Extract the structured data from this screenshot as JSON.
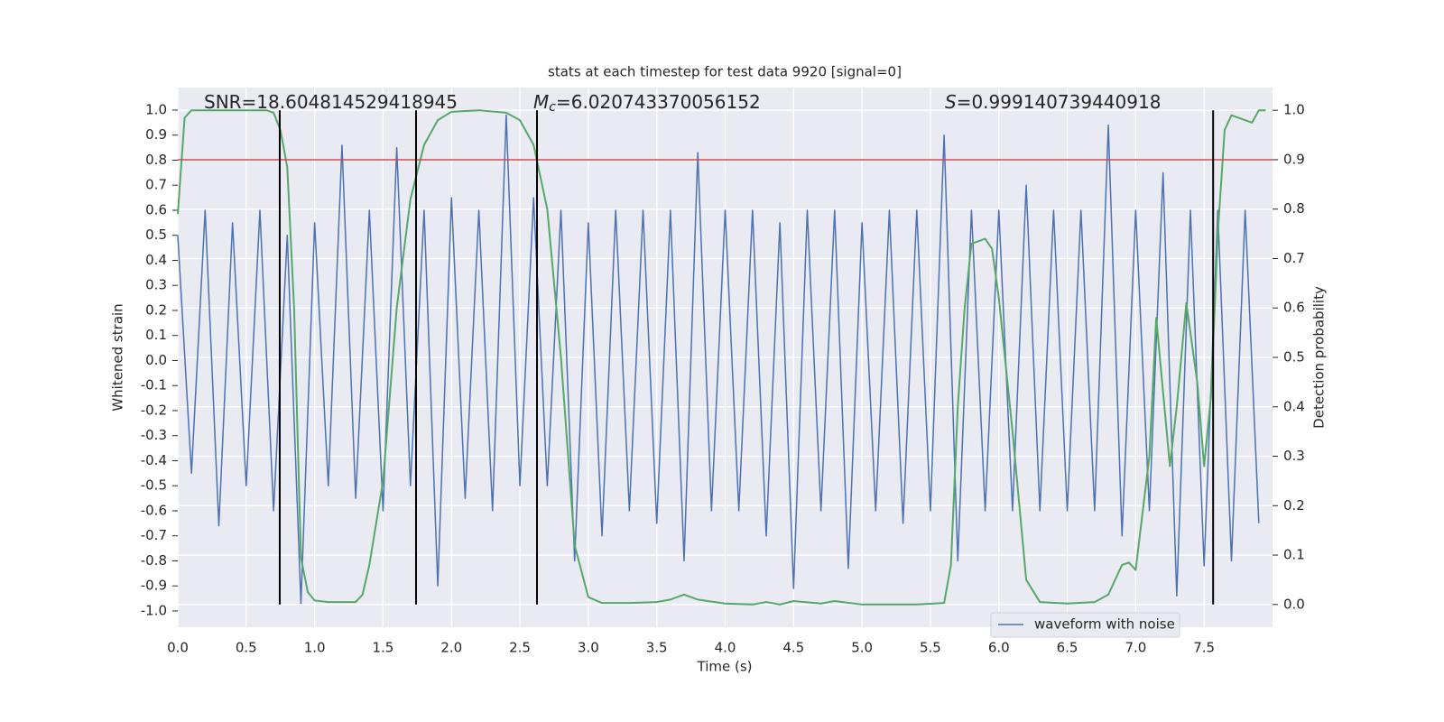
{
  "chart_data": {
    "type": "line",
    "title": "stats at each timestep for test data 9920 [signal=0]",
    "xlabel": "Time (s)",
    "ylabel": "Whitened strain",
    "y2label": "Detection probability",
    "annotations": [
      {
        "text": "SNR=18.604814529418945"
      },
      {
        "symbol": "M",
        "subscript": "c",
        "text": "=6.020743370056152"
      },
      {
        "symbol": "S",
        "text": "=0.999140739440918"
      }
    ],
    "xlim": [
      0,
      8
    ],
    "ylim": [
      -1.065,
      1.09
    ],
    "y2lim": [
      -0.046,
      1.046
    ],
    "xticks": [
      {
        "value": 0,
        "label": "0.0"
      },
      0.5,
      {
        "value": 1,
        "label": "1.0"
      },
      1.5,
      {
        "value": 2,
        "label": "2.0"
      },
      2.5,
      {
        "value": 3,
        "label": "3.0"
      },
      3.5,
      {
        "value": 4,
        "label": "4.0"
      },
      4.5,
      {
        "value": 5,
        "label": "5.0"
      },
      5.5,
      {
        "value": 6,
        "label": "6.0"
      },
      6.5,
      {
        "value": 7,
        "label": "7.0"
      },
      7.5
    ],
    "yticks": [
      {
        "value": -1,
        "label": "-1.0"
      },
      -0.9,
      -0.8,
      -0.7,
      -0.6,
      -0.5,
      -0.4,
      -0.3,
      -0.2,
      -0.1,
      {
        "value": 0,
        "label": "0.0"
      },
      0.1,
      0.2,
      0.3,
      0.4,
      0.5,
      0.6,
      0.7,
      0.8,
      0.9,
      {
        "value": 1,
        "label": "1.0"
      }
    ],
    "y2ticks": [
      {
        "value": 0,
        "label": "0.0"
      },
      0.1,
      0.2,
      0.3,
      0.4,
      0.5,
      0.6,
      0.7,
      0.8,
      0.9,
      {
        "value": 1,
        "label": "1.0"
      }
    ],
    "grid": true,
    "legend": "lower right",
    "hline": {
      "value": 0.9,
      "axis": "y2",
      "color": "#c44e52"
    },
    "vlines": {
      "x": [
        0.745,
        1.741,
        2.625,
        7.566
      ],
      "color": "#000000"
    },
    "series": [
      {
        "name": "waveform with noise",
        "color": "#4c72b0",
        "x": [
          0,
          0.1,
          0.2,
          0.3,
          0.4,
          0.5,
          0.6,
          0.7,
          0.8,
          0.9,
          1,
          1.1,
          1.2,
          1.3,
          1.4,
          1.5,
          1.6,
          1.7,
          1.8,
          1.9,
          2,
          2.1,
          2.2,
          2.3,
          2.4,
          2.5,
          2.6,
          2.7,
          2.8,
          2.9,
          3,
          3.1,
          3.2,
          3.3,
          3.4,
          3.5,
          3.6,
          3.7,
          3.8,
          3.9,
          4,
          4.1,
          4.2,
          4.3,
          4.4,
          4.5,
          4.6,
          4.7,
          4.8,
          4.9,
          5,
          5.1,
          5.2,
          5.3,
          5.4,
          5.5,
          5.6,
          5.7,
          5.8,
          5.9,
          6,
          6.1,
          6.2,
          6.3,
          6.4,
          6.5,
          6.6,
          6.7,
          6.8,
          6.9,
          7,
          7.1,
          7.2,
          7.3,
          7.4,
          7.5,
          7.6,
          7.7,
          7.8,
          7.9
        ],
        "values": [
          0.5,
          -0.45,
          0.6,
          -0.66,
          0.55,
          -0.5,
          0.6,
          -0.6,
          0.5,
          -0.97,
          0.55,
          -0.5,
          0.86,
          -0.55,
          0.6,
          -0.6,
          0.85,
          -0.5,
          0.6,
          -0.9,
          0.65,
          -0.55,
          0.6,
          -0.6,
          0.98,
          -0.5,
          0.65,
          -0.5,
          0.6,
          -0.8,
          0.55,
          -0.7,
          0.6,
          -0.6,
          0.6,
          -0.65,
          0.6,
          -0.8,
          0.83,
          -0.6,
          0.6,
          -0.6,
          0.6,
          -0.7,
          0.55,
          -0.91,
          0.6,
          -0.6,
          0.6,
          -0.83,
          0.55,
          -0.6,
          0.6,
          -0.65,
          0.6,
          -0.6,
          0.9,
          -0.8,
          0.6,
          -0.6,
          0.6,
          -0.6,
          0.7,
          -0.6,
          0.6,
          -0.6,
          0.6,
          -0.6,
          0.94,
          -0.7,
          0.6,
          -0.6,
          0.75,
          -0.94,
          0.6,
          -0.82,
          0.6,
          -0.8,
          0.6,
          -0.65
        ]
      },
      {
        "color": "#55a868",
        "axis": "y2",
        "x": [
          0,
          0.05,
          0.1,
          0.2,
          0.4,
          0.65,
          0.7,
          0.75,
          0.8,
          0.85,
          0.9,
          0.95,
          1.0,
          1.1,
          1.2,
          1.3,
          1.35,
          1.4,
          1.5,
          1.6,
          1.7,
          1.8,
          1.9,
          2.0,
          2.2,
          2.4,
          2.5,
          2.6,
          2.7,
          2.8,
          2.9,
          3.0,
          3.1,
          3.3,
          3.5,
          3.6,
          3.7,
          3.8,
          4.0,
          4.2,
          4.3,
          4.4,
          4.5,
          4.7,
          4.8,
          5.0,
          5.2,
          5.4,
          5.6,
          5.65,
          5.7,
          5.75,
          5.8,
          5.9,
          5.95,
          6.0,
          6.1,
          6.2,
          6.3,
          6.5,
          6.7,
          6.8,
          6.9,
          6.95,
          7.0,
          7.1,
          7.15,
          7.25,
          7.3,
          7.37,
          7.45,
          7.5,
          7.55,
          7.6,
          7.65,
          7.7,
          7.85,
          7.9,
          7.95
        ],
        "values": [
          0.79,
          0.985,
          1.0,
          1.0,
          1.0,
          1.0,
          0.995,
          0.96,
          0.885,
          0.6,
          0.095,
          0.025,
          0.008,
          0.005,
          0.005,
          0.005,
          0.02,
          0.08,
          0.25,
          0.6,
          0.82,
          0.93,
          0.98,
          0.997,
          1.0,
          0.995,
          0.98,
          0.93,
          0.8,
          0.5,
          0.12,
          0.015,
          0.003,
          0.003,
          0.005,
          0.01,
          0.02,
          0.01,
          0.002,
          0.0,
          0.005,
          0.0,
          0.007,
          0.002,
          0.007,
          0.0,
          0.0,
          0.0,
          0.003,
          0.08,
          0.4,
          0.6,
          0.73,
          0.74,
          0.72,
          0.62,
          0.35,
          0.05,
          0.005,
          0.002,
          0.005,
          0.02,
          0.08,
          0.085,
          0.07,
          0.3,
          0.58,
          0.28,
          0.4,
          0.61,
          0.45,
          0.28,
          0.42,
          0.75,
          0.96,
          0.99,
          0.975,
          1.0,
          1.0
        ]
      }
    ]
  }
}
